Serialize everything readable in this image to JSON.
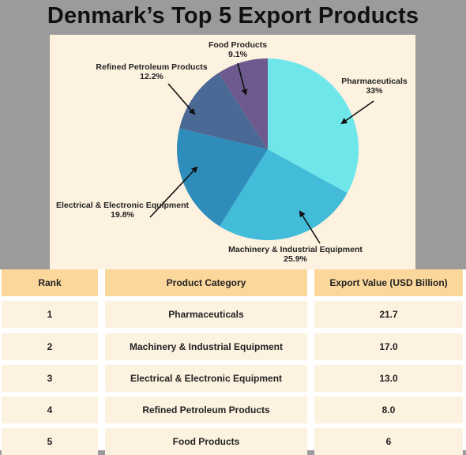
{
  "title": "Denmark’s Top 5 Export Products",
  "chart_data": {
    "type": "pie",
    "title": "Denmark’s Top 5 Export Products",
    "start_angle_deg": 0,
    "direction": "clockwise",
    "slices": [
      {
        "label": "Pharmaceuticals",
        "value": 33,
        "value_label": "33%",
        "color": "#6ee6ea"
      },
      {
        "label": "Machinery & Industrial Equipment",
        "value": 25.9,
        "value_label": "25.9%",
        "color": "#43bcd9"
      },
      {
        "label": "Electrical & Electronic Equipment",
        "value": 19.8,
        "value_label": "19.8%",
        "color": "#2e8dbb"
      },
      {
        "label": "Refined Petroleum Products",
        "value": 12.2,
        "value_label": "12.2%",
        "color": "#4a6a95"
      },
      {
        "label": "Food Products",
        "value": 9.1,
        "value_label": "9.1%",
        "color": "#6e5a8e"
      }
    ]
  },
  "table": {
    "headers": [
      "Rank",
      "Product Category",
      "Export Value (USD Billion)"
    ],
    "rows": [
      [
        "1",
        "Pharmaceuticals",
        "21.7"
      ],
      [
        "2",
        "Machinery & Industrial Equipment",
        "17.0"
      ],
      [
        "3",
        "Electrical & Electronic Equipment",
        "13.0"
      ],
      [
        "4",
        "Refined Petroleum Products",
        "8.0"
      ],
      [
        "5",
        "Food Products",
        "6"
      ]
    ]
  }
}
